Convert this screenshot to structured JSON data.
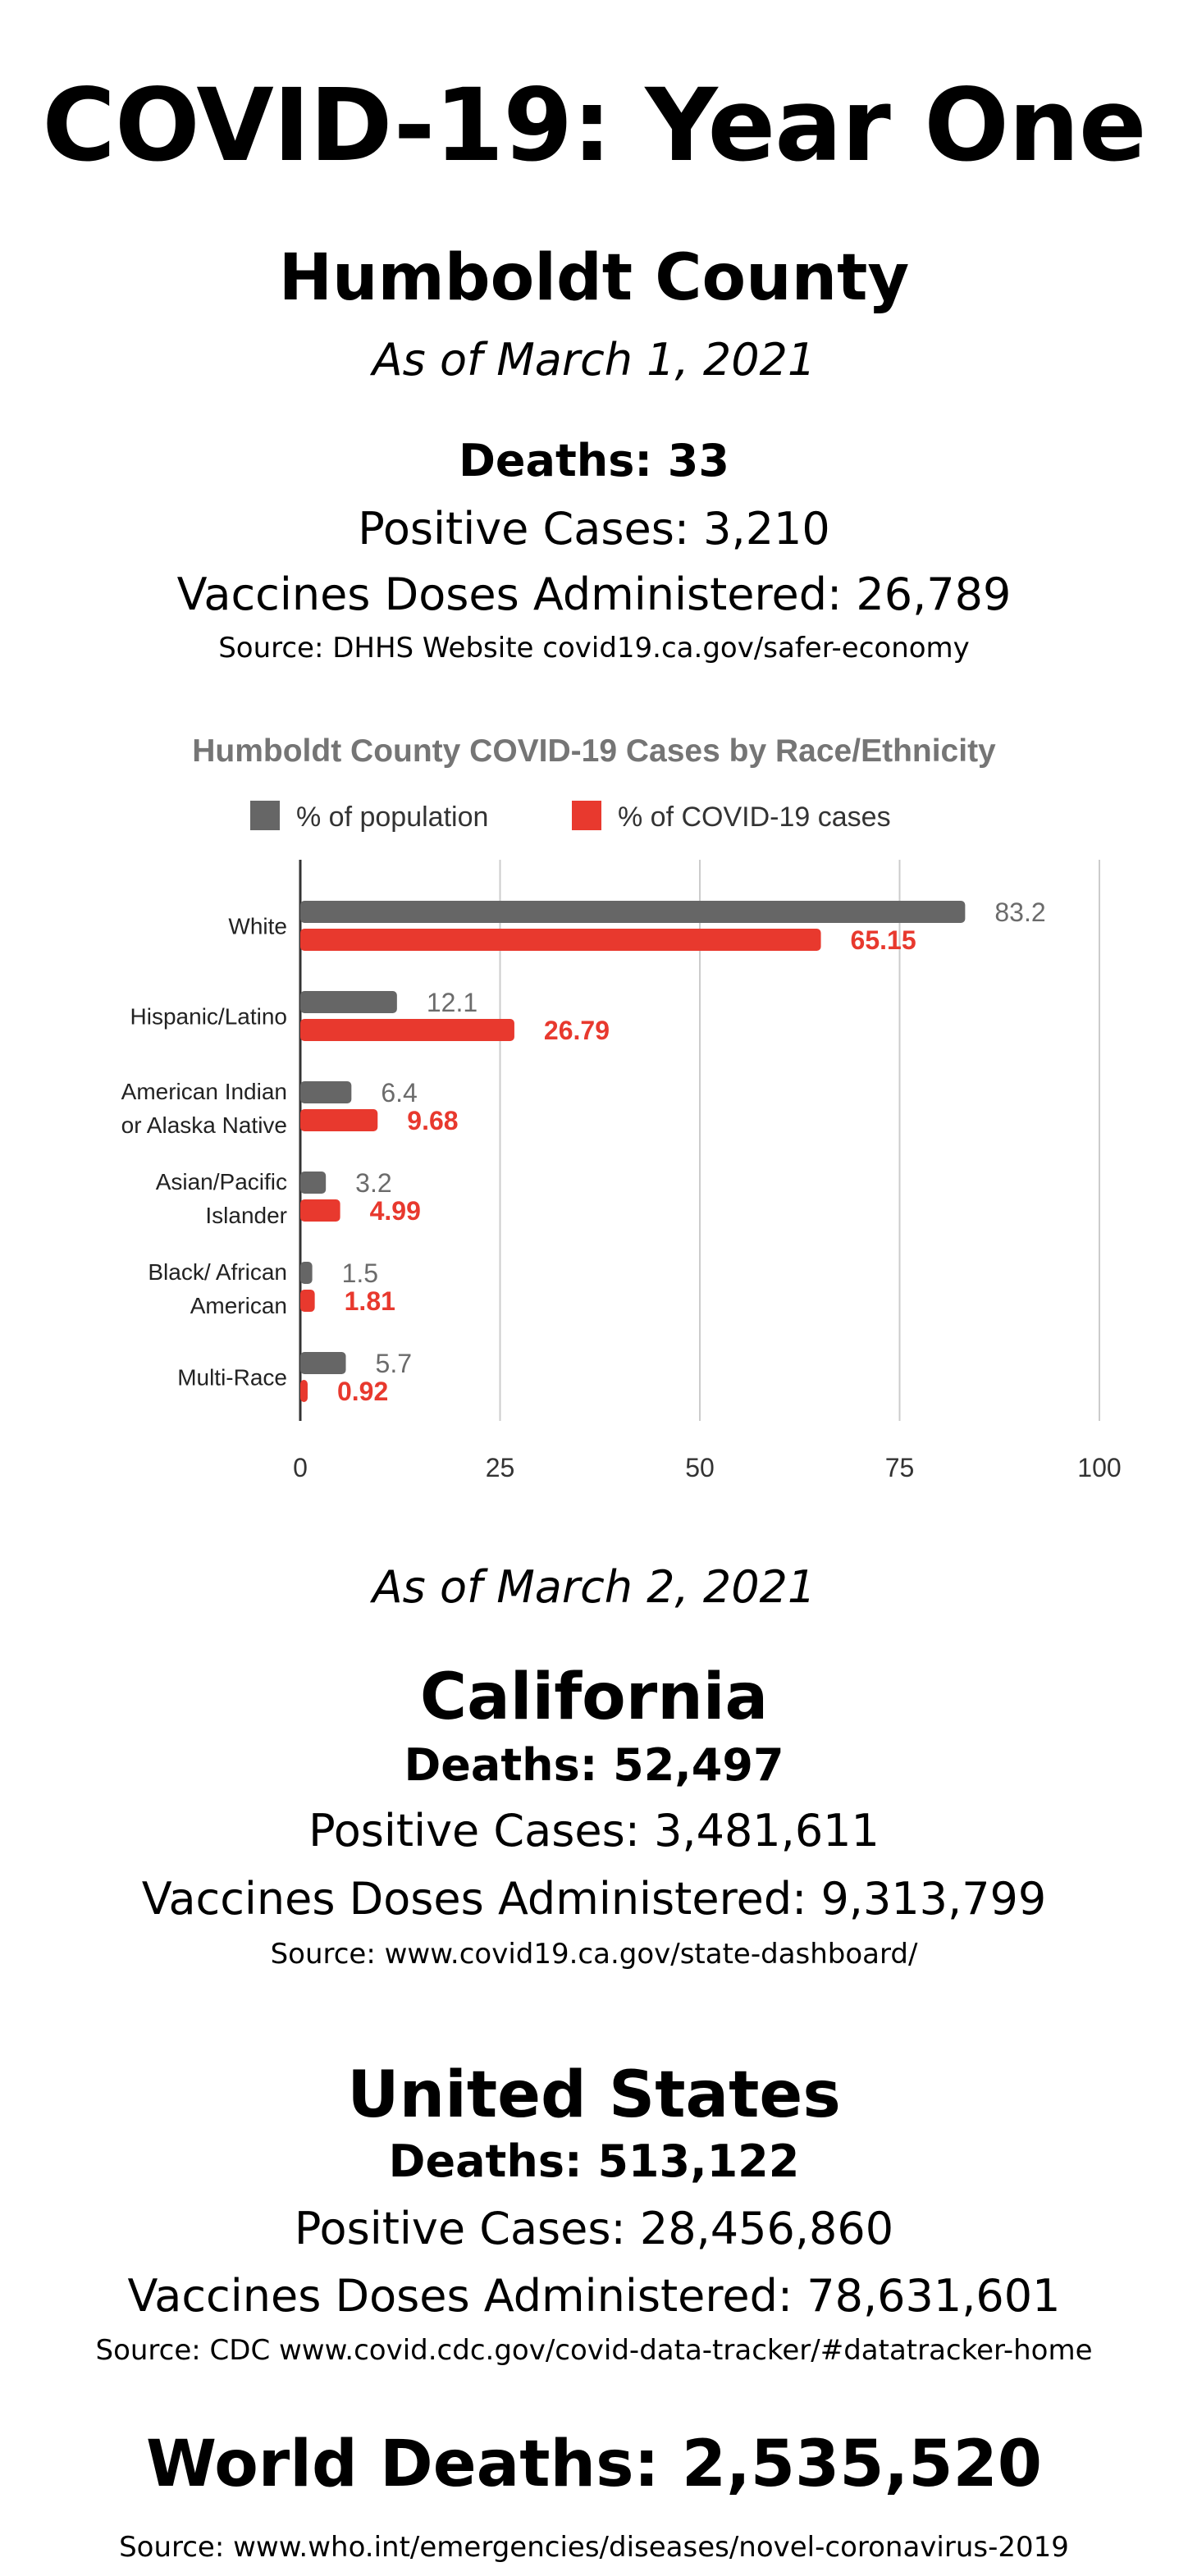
{
  "title": "COVID-19: Year One",
  "humboldt": {
    "heading": "Humboldt County",
    "date": "As of March 1, 2021",
    "deaths": "Deaths: 33",
    "cases": "Positive Cases: 3,210",
    "vaccines": "Vaccines Doses Administered: 26,789",
    "source": "Source: DHHS Website covid19.ca.gov/safer-economy"
  },
  "chart_data": {
    "type": "bar",
    "orientation": "horizontal",
    "title": "Humboldt County COVID-19 Cases by Race/Ethnicity",
    "categories": [
      [
        "White"
      ],
      [
        "Hispanic/Latino"
      ],
      [
        "American Indian",
        "or Alaska Native"
      ],
      [
        "Asian/Pacific",
        "Islander"
      ],
      [
        "Black/ African",
        "American"
      ],
      [
        "Multi-Race"
      ]
    ],
    "series": [
      {
        "name": "% of population",
        "color": "#666666",
        "values": [
          83.2,
          12.1,
          6.4,
          3.2,
          1.5,
          5.7
        ],
        "labels": [
          "83.2",
          "12.1",
          "6.4",
          "3.2",
          "1.5",
          "5.7"
        ]
      },
      {
        "name": "% of COVID-19 cases",
        "color": "#e8392e",
        "values": [
          65.15,
          26.79,
          9.68,
          4.99,
          1.81,
          0.92
        ],
        "labels": [
          "65.15",
          "26.79",
          "9.68",
          "4.99",
          "1.81",
          "0.92"
        ]
      }
    ],
    "xlim": [
      0,
      100
    ],
    "xticks": [
      0,
      25,
      50,
      75,
      100
    ],
    "grid": true,
    "legend": "top"
  },
  "california_date": "As of March 2, 2021",
  "california": {
    "heading": "California",
    "deaths": "Deaths: 52,497",
    "cases": "Positive Cases: 3,481,611",
    "vaccines": "Vaccines Doses Administered: 9,313,799",
    "source": "Source: www.covid19.ca.gov/state-dashboard/"
  },
  "us": {
    "heading": "United States",
    "deaths": "Deaths: 513,122",
    "cases": "Positive Cases: 28,456,860",
    "vaccines": "Vaccines Doses Administered: 78,631,601",
    "source": "Source: CDC www.covid.cdc.gov/covid-data-tracker/#datatracker-home"
  },
  "world": {
    "deaths": "World Deaths: 2,535,520",
    "source": "Source: www.who.int/emergencies/diseases/novel-coronavirus-2019"
  }
}
